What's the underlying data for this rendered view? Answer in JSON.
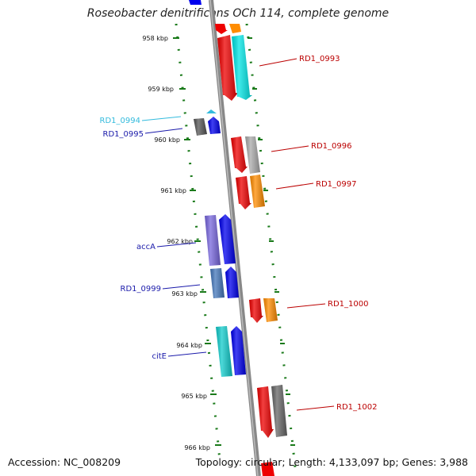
{
  "title": "Roseobacter denitrificans OCh 114, complete genome",
  "footer": {
    "accession": "Accession: NC_008209",
    "stats": "Topology: circular; Length: 4,133,097 bp; Genes: 3,988"
  },
  "colors": {
    "backbone": "#8a8a8a",
    "tick": "#1a7a1a",
    "left_label": "#1a1aaa",
    "right_label": "#bb0000",
    "light_label": "#33bbdd"
  },
  "tick_labels": [
    "958 kbp",
    "959 kbp",
    "960 kbp",
    "961 kbp",
    "962 kbp",
    "963 kbp",
    "964 kbp",
    "965 kbp",
    "966 kbp"
  ],
  "gene_labels_left": [
    "RD1_0994",
    "RD1_0995",
    "accA",
    "RD1_0999",
    "citE"
  ],
  "gene_labels_right": [
    "RD1_0993",
    "RD1_0996",
    "RD1_0997",
    "RD1_1000",
    "RD1_1002"
  ]
}
